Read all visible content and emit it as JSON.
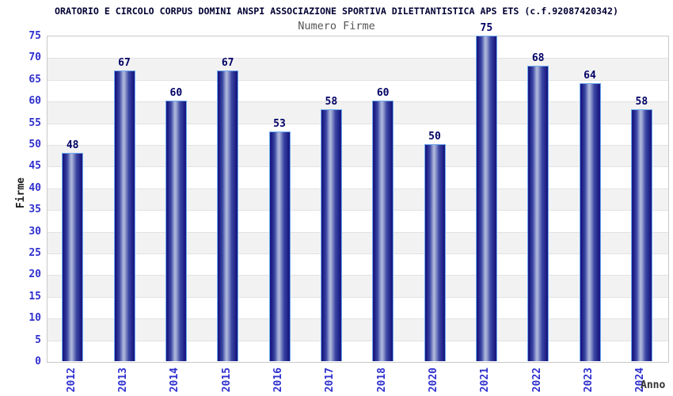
{
  "chart_data": {
    "type": "bar",
    "title": "ORATORIO E CIRCOLO CORPUS DOMINI ANSPI ASSOCIAZIONE SPORTIVA DILETTANTISTICA APS ETS (c.f.92087420342)",
    "subtitle": "Numero Firme",
    "xlabel": "Anno",
    "ylabel": "Firme",
    "categories": [
      "2012",
      "2013",
      "2014",
      "2015",
      "2016",
      "2017",
      "2018",
      "2020",
      "2021",
      "2022",
      "2023",
      "2024"
    ],
    "values": [
      48,
      67,
      60,
      67,
      53,
      58,
      60,
      50,
      75,
      68,
      64,
      58
    ],
    "ylim": [
      0,
      75
    ],
    "ytick_step": 5,
    "yticks": [
      0,
      5,
      10,
      15,
      20,
      25,
      30,
      35,
      40,
      45,
      50,
      55,
      60,
      65,
      70,
      75
    ],
    "grid": "horizontal-alternating-bands",
    "legend_position": "none",
    "colors": {
      "title_text": "#000033",
      "subtitle_text": "#555555",
      "tick_label_text": "#3030cf",
      "value_label_text": "#000066",
      "axis_title_text": "#1f1f1f",
      "band_white": "#ffffff",
      "band_gray": "#f2f2f2",
      "gridline": "#e2e2e2",
      "plot_border": "#c9c9c9",
      "bar_edge_dark": "#1a1a82",
      "bar_mid_dark": "#3c47a4",
      "bar_center_light": "#a9b3d9",
      "bar_outline": "#6faaf0"
    }
  }
}
